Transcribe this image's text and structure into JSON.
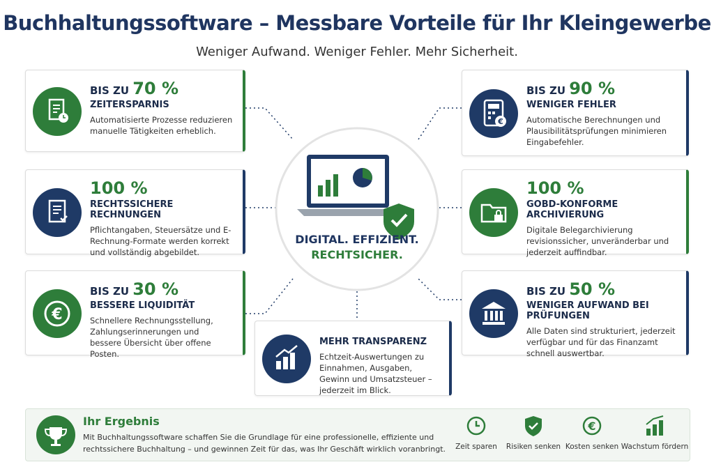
{
  "header": {
    "title": "Buchhaltungssoftware – Messbare Vorteile für Ihr Kleingewerbe",
    "subtitle": "Weniger Aufwand. Weniger Fehler. Mehr Sicherheit."
  },
  "cards": [
    {
      "prefix": "BIS ZU",
      "value": "70 %",
      "heading": "ZEITERSPARNIS",
      "text": "Automatisierte Prozesse reduzieren manuelle Tätigkeiten erheblich.",
      "color": "#2e7d3a"
    },
    {
      "value": "100 %",
      "heading": "RECHTSSICHERE RECHNUNGEN",
      "text": "Pflichtangaben, Steuersätze und E-Rechnung-Formate werden korrekt und vollständig abgebildet.",
      "color": "#1f3a66"
    },
    {
      "prefix": "BIS ZU",
      "value": "30 %",
      "heading": "BESSERE LIQUIDITÄT",
      "text": "Schnellere Rechnungsstellung, Zahlungserinnerungen und bessere Übersicht über offene Posten.",
      "color": "#2e7d3a"
    },
    {
      "prefix": "BIS ZU",
      "value": "90 %",
      "heading": "WENIGER FEHLER",
      "text": "Automatische Berechnungen und Plausibilitätsprüfungen minimieren Eingabefehler.",
      "color": "#1f3a66"
    },
    {
      "value": "100 %",
      "heading": "GOBD-KONFORME ARCHIVIERUNG",
      "text": "Digitale Belegarchivierung revisionssicher, unveränderbar und jederzeit auffindbar.",
      "color": "#2e7d3a"
    },
    {
      "prefix": "BIS ZU",
      "value": "50 %",
      "heading": "WENIGER AUFWAND BEI PRÜFUNGEN",
      "text": "Alle Daten sind strukturiert, jederzeit verfügbar und für das Finanzamt schnell auswertbar.",
      "color": "#1f3a66"
    },
    {
      "heading": "MEHR TRANSPARENZ",
      "text": "Echtzeit-Auswertungen zu Einnahmen, Ausgaben, Gewinn und Umsatzsteuer – jederzeit im Blick.",
      "color": "#1f3a66"
    }
  ],
  "center": {
    "line1": "DIGITAL. EFFIZIENT.",
    "line2": "RECHTSICHER."
  },
  "result": {
    "title": "Ihr Ergebnis",
    "text": "Mit Buchhaltungssoftware schaffen Sie die Grundlage für eine professionelle, effiziente und rechtssichere Buchhaltung – und gewinnen Zeit für das, was Ihr Geschäft wirklich voranbringt.",
    "items": [
      "Zeit sparen",
      "Risiken senken",
      "Kosten senken",
      "Wachstum fördern"
    ]
  }
}
